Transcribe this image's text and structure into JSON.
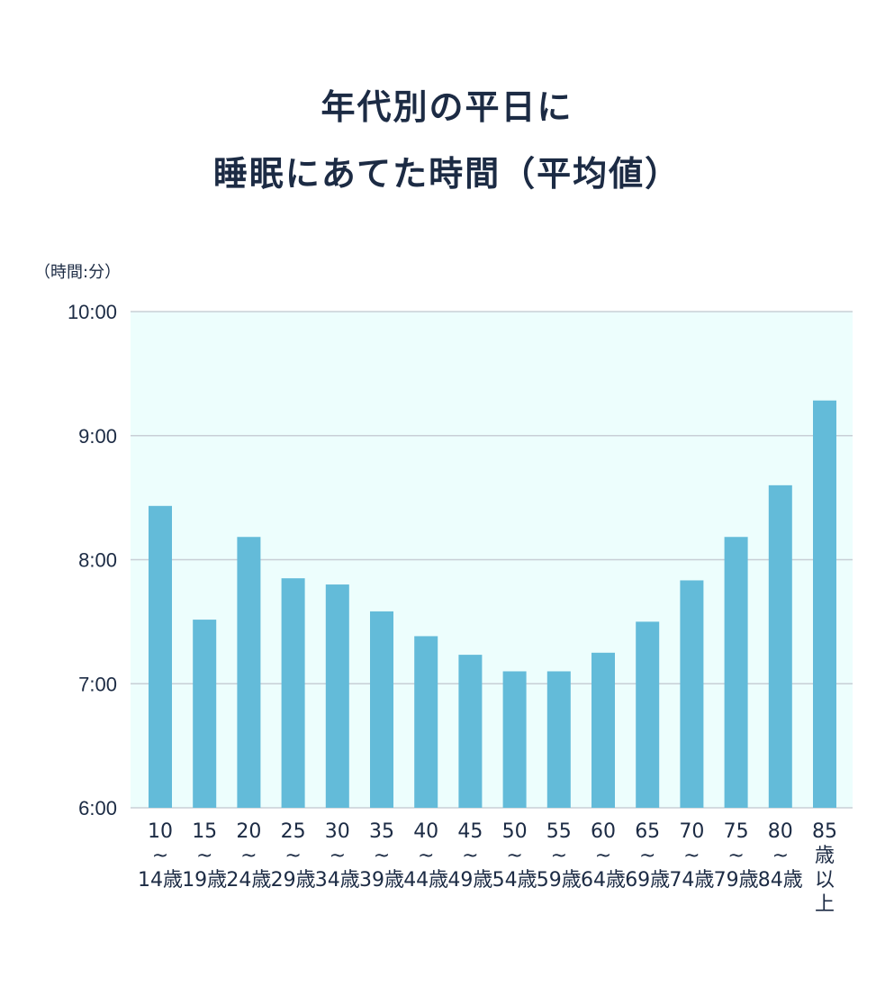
{
  "chart_data": {
    "type": "bar",
    "title_lines": [
      "年代別の平日に",
      "睡眠にあてた時間（平均値）"
    ],
    "ylabel": "（時間:分）",
    "y_unit": "minutes",
    "ylim": [
      360,
      600
    ],
    "yticks": [
      {
        "value": 360,
        "label": "6:00"
      },
      {
        "value": 420,
        "label": "7:00"
      },
      {
        "value": 480,
        "label": "8:00"
      },
      {
        "value": 540,
        "label": "9:00"
      },
      {
        "value": 600,
        "label": "10:00"
      }
    ],
    "grid": true,
    "categories": [
      [
        "10",
        "~",
        "14歳"
      ],
      [
        "15",
        "~",
        "19歳"
      ],
      [
        "20",
        "~",
        "24歳"
      ],
      [
        "25",
        "~",
        "29歳"
      ],
      [
        "30",
        "~",
        "34歳"
      ],
      [
        "35",
        "~",
        "39歳"
      ],
      [
        "40",
        "~",
        "44歳"
      ],
      [
        "45",
        "~",
        "49歳"
      ],
      [
        "50",
        "~",
        "54歳"
      ],
      [
        "55",
        "~",
        "59歳"
      ],
      [
        "60",
        "~",
        "64歳"
      ],
      [
        "65",
        "~",
        "69歳"
      ],
      [
        "70",
        "~",
        "74歳"
      ],
      [
        "75",
        "~",
        "79歳"
      ],
      [
        "80",
        "~",
        "84歳"
      ],
      [
        "85",
        "歳",
        "以",
        "上"
      ]
    ],
    "values": [
      506,
      451,
      491,
      471,
      468,
      455,
      443,
      434,
      426,
      426,
      435,
      450,
      470,
      491,
      516,
      557
    ],
    "colors": {
      "bar": "#63bbd9",
      "plot_bg": "#edfefd",
      "grid": "#c8cfd6",
      "text": "#1c2b44"
    }
  }
}
